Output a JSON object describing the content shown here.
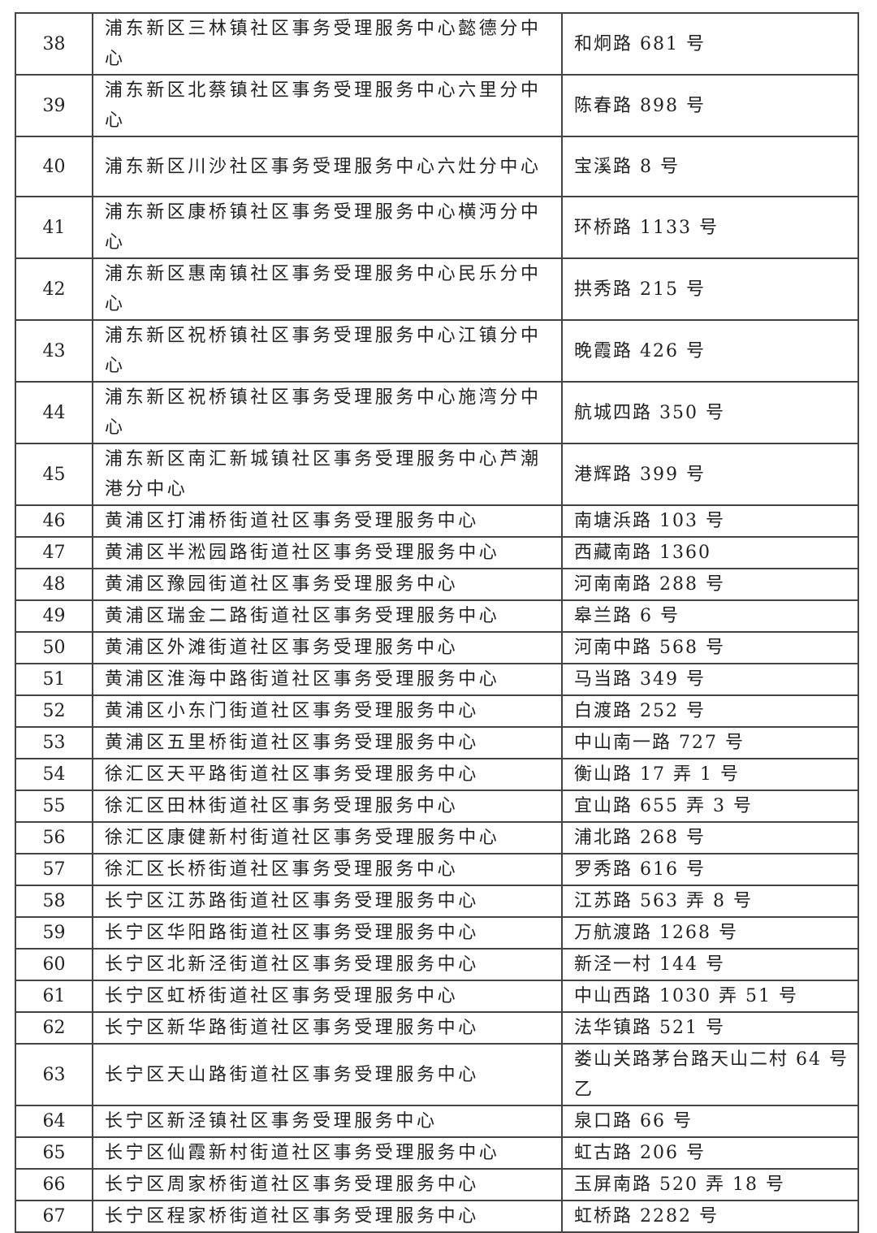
{
  "table": {
    "rows": [
      {
        "no": "38",
        "name": "浦东新区三林镇社区事务受理服务中心懿德分中心",
        "address": "和炯路 681 号",
        "lines": 2
      },
      {
        "no": "39",
        "name": "浦东新区北蔡镇社区事务受理服务中心六里分中心",
        "address": "陈春路 898 号",
        "lines": 2
      },
      {
        "no": "40",
        "name": "浦东新区川沙社区事务受理服务中心六灶分中心",
        "address": "宝溪路 8 号",
        "lines": 2
      },
      {
        "no": "41",
        "name": "浦东新区康桥镇社区事务受理服务中心横沔分中心",
        "address": "环桥路 1133 号",
        "lines": 2
      },
      {
        "no": "42",
        "name": "浦东新区惠南镇社区事务受理服务中心民乐分中心",
        "address": "拱秀路 215 号",
        "lines": 2
      },
      {
        "no": "43",
        "name": "浦东新区祝桥镇社区事务受理服务中心江镇分中心",
        "address": "晚霞路 426 号",
        "lines": 2
      },
      {
        "no": "44",
        "name": "浦东新区祝桥镇社区事务受理服务中心施湾分中心",
        "address": "航城四路 350 号",
        "lines": 2
      },
      {
        "no": "45",
        "name": "浦东新区南汇新城镇社区事务受理服务中心芦潮港分中心",
        "address": "港辉路 399 号",
        "lines": 2
      },
      {
        "no": "46",
        "name": "黄浦区打浦桥街道社区事务受理服务中心",
        "address": "南塘浜路 103 号",
        "lines": 1
      },
      {
        "no": "47",
        "name": "黄浦区半淞园路街道社区事务受理服务中心",
        "address": "西藏南路 1360",
        "lines": 1
      },
      {
        "no": "48",
        "name": "黄浦区豫园街道社区事务受理服务中心",
        "address": "河南南路 288 号",
        "lines": 1
      },
      {
        "no": "49",
        "name": "黄浦区瑞金二路街道社区事务受理服务中心",
        "address": "皋兰路 6 号",
        "lines": 1
      },
      {
        "no": "50",
        "name": "黄浦区外滩街道社区事务受理服务中心",
        "address": "河南中路 568 号",
        "lines": 1
      },
      {
        "no": "51",
        "name": "黄浦区淮海中路街道社区事务受理服务中心",
        "address": "马当路 349 号",
        "lines": 1
      },
      {
        "no": "52",
        "name": "黄浦区小东门街道社区事务受理服务中心",
        "address": "白渡路 252 号",
        "lines": 1
      },
      {
        "no": "53",
        "name": "黄浦区五里桥街道社区事务受理服务中心",
        "address": "中山南一路 727 号",
        "lines": 1
      },
      {
        "no": "54",
        "name": "徐汇区天平路街道社区事务受理服务中心",
        "address": "衡山路 17 弄 1 号",
        "lines": 1
      },
      {
        "no": "55",
        "name": "徐汇区田林街道社区事务受理服务中心",
        "address": "宜山路 655 弄 3 号",
        "lines": 1
      },
      {
        "no": "56",
        "name": "徐汇区康健新村街道社区事务受理服务中心",
        "address": "浦北路 268 号",
        "lines": 1
      },
      {
        "no": "57",
        "name": "徐汇区长桥街道社区事务受理服务中心",
        "address": "罗秀路 616 号",
        "lines": 1
      },
      {
        "no": "58",
        "name": "长宁区江苏路街道社区事务受理服务中心",
        "address": "江苏路 563 弄 8 号",
        "lines": 1
      },
      {
        "no": "59",
        "name": "长宁区华阳路街道社区事务受理服务中心",
        "address": "万航渡路 1268 号",
        "lines": 1
      },
      {
        "no": "60",
        "name": "长宁区北新泾街道社区事务受理服务中心",
        "address": "新泾一村 144 号",
        "lines": 1
      },
      {
        "no": "61",
        "name": "长宁区虹桥街道社区事务受理服务中心",
        "address": "中山西路 1030 弄 51 号",
        "lines": 1
      },
      {
        "no": "62",
        "name": "长宁区新华路街道社区事务受理服务中心",
        "address": "法华镇路 521 号",
        "lines": 1
      },
      {
        "no": "63",
        "name": "长宁区天山路街道社区事务受理服务中心",
        "address": "娄山关路茅台路天山二村 64 号乙",
        "lines": 2
      },
      {
        "no": "64",
        "name": "长宁区新泾镇社区事务受理服务中心",
        "address": "泉口路 66 号",
        "lines": 1
      },
      {
        "no": "65",
        "name": "长宁区仙霞新村街道社区事务受理服务中心",
        "address": "虹古路 206 号",
        "lines": 1
      },
      {
        "no": "66",
        "name": "长宁区周家桥街道社区事务受理服务中心",
        "address": "玉屏南路 520 弄 18 号",
        "lines": 1
      },
      {
        "no": "67",
        "name": "长宁区程家桥街道社区事务受理服务中心",
        "address": "虹桥路 2282 号",
        "lines": 1
      }
    ]
  }
}
